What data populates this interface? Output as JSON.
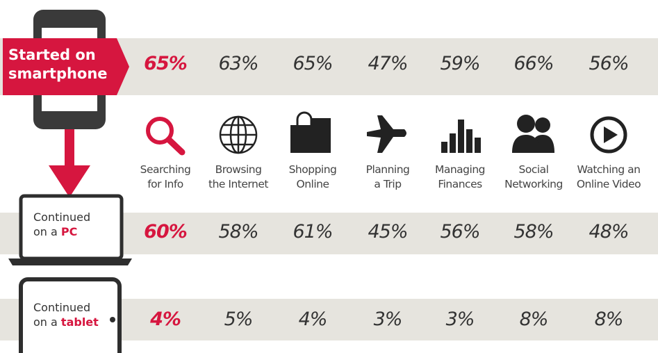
{
  "rows": [
    {
      "label": [
        "Started on",
        "smartphone"
      ],
      "values": [
        "65%",
        "63%",
        "65%",
        "47%",
        "59%",
        "66%",
        "56%"
      ]
    },
    {
      "label": [
        "Continued",
        "on a",
        "PC"
      ],
      "values": [
        "60%",
        "58%",
        "61%",
        "45%",
        "56%",
        "58%",
        "48%"
      ]
    },
    {
      "label": [
        "Continued",
        "on a",
        "tablet"
      ],
      "values": [
        "4%",
        "5%",
        "4%",
        "3%",
        "3%",
        "8%",
        "8%"
      ]
    }
  ],
  "activities": [
    [
      "Searching",
      "for Info"
    ],
    [
      "Browsing",
      "the Internet"
    ],
    [
      "Shopping",
      "Online"
    ],
    [
      "Planning",
      "a Trip"
    ],
    [
      "Managing",
      "Finances"
    ],
    [
      "Social",
      "Networking"
    ],
    [
      "Watching an",
      "Online Video"
    ]
  ]
}
